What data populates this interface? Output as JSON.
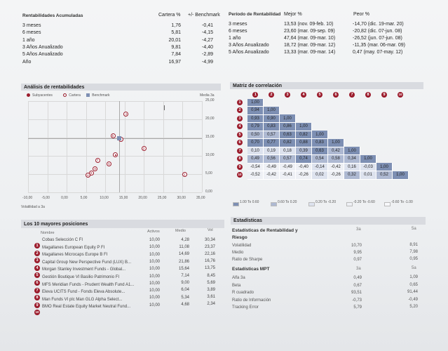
{
  "rent_acum": {
    "title": "Rentabilidades Acumuladas",
    "col1": "Cartera %",
    "col2": "+/- Benchmark",
    "rows": [
      {
        "label": "3 meses",
        "v1": "1,76",
        "v2": "-0,41"
      },
      {
        "label": "6 meses",
        "v1": "5,81",
        "v2": "-4,15"
      },
      {
        "label": "1 año",
        "v1": "20,01",
        "v2": "-4,27"
      },
      {
        "label": "3 Años Anualizado",
        "v1": "9,81",
        "v2": "-4,40"
      },
      {
        "label": "5 Años Anualizado",
        "v1": "7,84",
        "v2": "-2,89"
      },
      {
        "label": "Año",
        "v1": "16,97",
        "v2": "-4,99"
      }
    ]
  },
  "periodo": {
    "title": "Período de Rentabilidad",
    "col1": "Mejor %",
    "col2": "Peor %",
    "rows": [
      {
        "label": "3 meses",
        "v1": "13,53 (nov. 09-feb. 10)",
        "v2": "-14,70 (dic. 19-mar. 20)"
      },
      {
        "label": "6 meses",
        "v1": "23,60 (mar. 09-sep. 09)",
        "v2": "-20,82 (dic. 07-jun. 08)"
      },
      {
        "label": "1 año",
        "v1": "47,64 (mar. 09-mar. 10)",
        "v2": "-26,52 (jun. 07-jun. 08)"
      },
      {
        "label": "3 Años Anualizado",
        "v1": "18,72 (mar. 09-mar. 12)",
        "v2": "-11,35 (mar. 06-mar. 09)"
      },
      {
        "label": "5 Años Anualizado",
        "v1": "13,33 (mar. 09-mar. 14)",
        "v2": "0,47 (may. 07-may. 12)"
      }
    ]
  },
  "analisis": {
    "title": "Análisis de rentabilidades",
    "legend": [
      "Subyacentes",
      "Cartera",
      "Benchmark"
    ],
    "y_title": "Media 3a",
    "x_title": "Volatilidad a 3a",
    "y_ticks": [
      "25,00",
      "20,00",
      "15,00",
      "10,00",
      "5,00",
      "0,00"
    ],
    "x_ticks": [
      "-10,00",
      "-5,00",
      "0,00",
      "5,00",
      "10,00",
      "15,00",
      "20,00",
      "25,00",
      "30,00",
      "35,00"
    ],
    "points": [
      {
        "n": "1",
        "x": 30.5,
        "y": 5.0,
        "kind": "sub"
      },
      {
        "n": "2",
        "x": 20.0,
        "y": 12.0,
        "kind": "sub"
      },
      {
        "n": "3",
        "x": 14.0,
        "y": 14.6,
        "kind": "sub"
      },
      {
        "n": "4",
        "x": 15.4,
        "y": 21.4,
        "kind": "sub"
      },
      {
        "n": "5",
        "x": 12.0,
        "y": 15.4,
        "kind": "sub"
      },
      {
        "n": "6",
        "x": 11.0,
        "y": 7.8,
        "kind": "sub"
      },
      {
        "n": "7",
        "x": 8.0,
        "y": 8.8,
        "kind": "sub"
      },
      {
        "n": "8",
        "x": 7.4,
        "y": 6.4,
        "kind": "sub"
      },
      {
        "n": "9",
        "x": 6.4,
        "y": 5.2,
        "kind": "sub"
      },
      {
        "n": "10",
        "x": 5.6,
        "y": 4.8,
        "kind": "sub"
      },
      {
        "n": "",
        "x": 12.6,
        "y": 10.2,
        "kind": "cartera"
      },
      {
        "n": "",
        "x": 13.6,
        "y": 14.8,
        "kind": "bench"
      }
    ]
  },
  "matriz": {
    "title": "Matriz de correlación",
    "headers": [
      "1",
      "2",
      "3",
      "4",
      "5",
      "6",
      "7",
      "8",
      "9",
      "10"
    ],
    "rows": [
      [
        "1,00"
      ],
      [
        "0,94",
        "1,00"
      ],
      [
        "0,93",
        "0,90",
        "1,00"
      ],
      [
        "0,79",
        "0,83",
        "0,86",
        "1,00"
      ],
      [
        "0,50",
        "0,57",
        "0,63",
        "0,82",
        "1,00"
      ],
      [
        "0,70",
        "0,77",
        "0,82",
        "0,88",
        "0,83",
        "1,00"
      ],
      [
        "0,10",
        "0,19",
        "0,18",
        "0,39",
        "0,63",
        "0,42",
        "1,00"
      ],
      [
        "0,49",
        "0,56",
        "0,57",
        "0,74",
        "0,54",
        "0,58",
        "0,34",
        "1,00"
      ],
      [
        "-0,54",
        "-0,49",
        "-0,49",
        "-0,40",
        "-0,14",
        "-0,42",
        "0,16",
        "-0,03",
        "1,00"
      ],
      [
        "-0,52",
        "-0,42",
        "-0,41",
        "-0,26",
        "0,02",
        "-0,26",
        "0,32",
        "0,01",
        "0,52",
        "1,00"
      ]
    ],
    "legend": [
      "1.00 To 0.60",
      "0.60 To 0.20",
      "0.20 To -0.20",
      "-0.20 To -0.60",
      "-0.60 To -1.00"
    ],
    "legend_colors": [
      "#7d8fb3",
      "#aeb9d2",
      "#dde2ee",
      "#eef0f5",
      "#f7f8fa"
    ]
  },
  "posiciones": {
    "title": "Los 10 mayores posiciones",
    "col_name": "Nombre",
    "col_a": "Activos",
    "col_b": "Medio",
    "col_c": "Vol",
    "rows": [
      {
        "n": "1",
        "name": "Cobas Selección C FI",
        "a": "10,00",
        "b": "4,28",
        "c": "30,34"
      },
      {
        "n": "2",
        "name": "Magallanes European Equity P FI",
        "a": "10,00",
        "b": "11,08",
        "c": "23,37"
      },
      {
        "n": "3",
        "name": "Magallanes Microcaps Europe B FI",
        "a": "10,00",
        "b": "14,69",
        "c": "22,16"
      },
      {
        "n": "4",
        "name": "Capital Group New Perspective Fund (LUX) B...",
        "a": "10,00",
        "b": "21,86",
        "c": "16,76"
      },
      {
        "n": "5",
        "name": "Morgan Stanley Investment Funds - Global...",
        "a": "10,00",
        "b": "15,64",
        "c": "13,75"
      },
      {
        "n": "6",
        "name": "Gestión Boutique VI Basilio Patrimonio FI",
        "a": "10,00",
        "b": "7,14",
        "c": "8,45"
      },
      {
        "n": "7",
        "name": "MFS Meridian Funds - Prudent Wealth Fund A1...",
        "a": "10,00",
        "b": "9,00",
        "c": "5,69"
      },
      {
        "n": "8",
        "name": "Eleva UCITS Fund - Fonds Eleva Absolute...",
        "a": "10,00",
        "b": "6,04",
        "c": "3,89"
      },
      {
        "n": "9",
        "name": "Man Funds VI plc Man GLG Alpha Select...",
        "a": "10,00",
        "b": "5,34",
        "c": "3,61"
      },
      {
        "n": "10",
        "name": "BMO Real Estate Equity Market Neutral Fund...",
        "a": "10,00",
        "b": "4,68",
        "c": "2,34"
      }
    ]
  },
  "estadisticas": {
    "title": "Estadísticas",
    "sub1_l1": "Estadísticas de Rentabilidad y",
    "sub1_l2": "Riesgo",
    "c3": "3a",
    "c5": "5a",
    "rows1": [
      {
        "label": "Volatilidad",
        "v3": "10,70",
        "v5": "8,91"
      },
      {
        "label": "Medio",
        "v3": "9,95",
        "v5": "7,98"
      },
      {
        "label": "Ratio de Sharpe",
        "v3": "0,97",
        "v5": "0,95"
      }
    ],
    "sub2": "Estadísticas MPT",
    "rows2": [
      {
        "label": "Alfa 3a",
        "v3": "0,49",
        "v5": "1,09"
      },
      {
        "label": "Beta",
        "v3": "0,67",
        "v5": "0,65"
      },
      {
        "label": "R cuadrado",
        "v3": "93,51",
        "v5": "91,44"
      },
      {
        "label": "Ratio de Información",
        "v3": "-0,73",
        "v5": "-0,49"
      },
      {
        "label": "Tracking Error",
        "v3": "5,79",
        "v5": "5,20"
      }
    ]
  }
}
